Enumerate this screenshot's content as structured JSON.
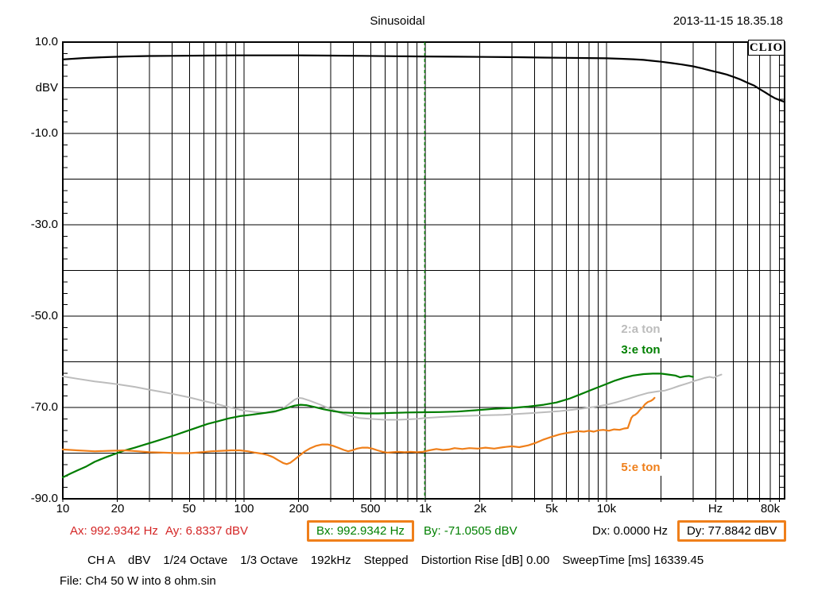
{
  "header": {
    "title": "Sinusoidal",
    "datetime": "2013-11-15 18.35.18",
    "logo": "CLIO"
  },
  "chart_data": {
    "type": "line",
    "title": "Sinusoidal",
    "x_axis": {
      "scale": "log",
      "min_hz": 10,
      "max_hz": 96000,
      "grid": "log-decades",
      "ticks": [
        {
          "hz": 10,
          "label": "10"
        },
        {
          "hz": 20,
          "label": "20"
        },
        {
          "hz": 50,
          "label": "50"
        },
        {
          "hz": 100,
          "label": "100"
        },
        {
          "hz": 200,
          "label": "200"
        },
        {
          "hz": 500,
          "label": "500"
        },
        {
          "hz": 1000,
          "label": "1k"
        },
        {
          "hz": 2000,
          "label": "2k"
        },
        {
          "hz": 5000,
          "label": "5k"
        },
        {
          "hz": 10000,
          "label": "10k"
        },
        {
          "hz": 40000,
          "label": "Hz"
        },
        {
          "hz": 80000,
          "label": "80k"
        }
      ]
    },
    "y_axis": {
      "unit": "dBV",
      "min": -90,
      "max": 10,
      "grid_step_db": 10,
      "minor_tick_db": 2.5,
      "tick_labels": [
        {
          "db": 10,
          "label": "10.0"
        },
        {
          "db": 0,
          "label": "dBV"
        },
        {
          "db": -10,
          "label": "-10.0"
        },
        {
          "db": -30,
          "label": "-30.0"
        },
        {
          "db": -50,
          "label": "-50.0"
        },
        {
          "db": -70,
          "label": "-70.0"
        },
        {
          "db": -90,
          "label": "-90.0"
        }
      ]
    },
    "marker_line": {
      "hz": 992.9342,
      "color": "#007700",
      "style": "dashed"
    },
    "legend": [
      {
        "label": "2:a ton",
        "color": "#bcbcbc"
      },
      {
        "label": "3:e ton",
        "color": "#008000"
      },
      {
        "label": "5:e ton",
        "color": "#ef7f1a"
      }
    ],
    "series": [
      {
        "id": "fundamental",
        "name": "CH A fundamental",
        "color": "#000000",
        "width": 2.2,
        "points": [
          [
            10,
            6.2
          ],
          [
            13,
            6.5
          ],
          [
            17,
            6.7
          ],
          [
            22,
            6.85
          ],
          [
            30,
            6.95
          ],
          [
            40,
            7.0
          ],
          [
            60,
            7.05
          ],
          [
            90,
            7.1
          ],
          [
            140,
            7.1
          ],
          [
            200,
            7.1
          ],
          [
            300,
            7.05
          ],
          [
            450,
            7.0
          ],
          [
            700,
            6.9
          ],
          [
            1000,
            6.85
          ],
          [
            1500,
            6.8
          ],
          [
            2200,
            6.75
          ],
          [
            3200,
            6.7
          ],
          [
            4500,
            6.6
          ],
          [
            6000,
            6.55
          ],
          [
            8000,
            6.5
          ],
          [
            10000,
            6.45
          ],
          [
            12000,
            6.35
          ],
          [
            14000,
            6.25
          ],
          [
            16000,
            6.1
          ],
          [
            18000,
            5.9
          ],
          [
            20000,
            5.7
          ],
          [
            23000,
            5.4
          ],
          [
            26000,
            5.1
          ],
          [
            30000,
            4.7
          ],
          [
            34000,
            4.2
          ],
          [
            38000,
            3.7
          ],
          [
            42000,
            3.3
          ],
          [
            46000,
            2.9
          ],
          [
            50000,
            2.4
          ],
          [
            55000,
            1.8
          ],
          [
            60000,
            1.1
          ],
          [
            65000,
            0.5
          ],
          [
            70000,
            -0.3
          ],
          [
            75000,
            -1.0
          ],
          [
            80000,
            -1.7
          ],
          [
            85000,
            -2.3
          ],
          [
            90000,
            -2.7
          ],
          [
            96000,
            -3.1
          ]
        ]
      },
      {
        "id": "harmonic-2",
        "name": "2:a ton",
        "color": "#bcbcbc",
        "width": 2,
        "points": [
          [
            10,
            -63.2
          ],
          [
            12,
            -63.7
          ],
          [
            15,
            -64.3
          ],
          [
            20,
            -64.9
          ],
          [
            25,
            -65.5
          ],
          [
            30,
            -66.1
          ],
          [
            35,
            -66.6
          ],
          [
            40,
            -67.0
          ],
          [
            50,
            -67.8
          ],
          [
            60,
            -68.6
          ],
          [
            70,
            -69.2
          ],
          [
            80,
            -69.8
          ],
          [
            90,
            -70.3
          ],
          [
            100,
            -70.7
          ],
          [
            115,
            -71.0
          ],
          [
            130,
            -71.2
          ],
          [
            145,
            -71.1
          ],
          [
            160,
            -70.5
          ],
          [
            175,
            -69.4
          ],
          [
            190,
            -68.3
          ],
          [
            200,
            -67.9
          ],
          [
            210,
            -68.0
          ],
          [
            230,
            -68.5
          ],
          [
            260,
            -69.3
          ],
          [
            300,
            -70.3
          ],
          [
            340,
            -71.2
          ],
          [
            380,
            -71.8
          ],
          [
            430,
            -72.3
          ],
          [
            500,
            -72.5
          ],
          [
            600,
            -72.7
          ],
          [
            700,
            -72.7
          ],
          [
            800,
            -72.6
          ],
          [
            900,
            -72.5
          ],
          [
            1000,
            -72.3
          ],
          [
            1200,
            -72.1
          ],
          [
            1500,
            -71.9
          ],
          [
            1800,
            -71.8
          ],
          [
            2200,
            -71.7
          ],
          [
            2700,
            -71.6
          ],
          [
            3300,
            -71.4
          ],
          [
            4000,
            -71.2
          ],
          [
            4700,
            -71.0
          ],
          [
            5500,
            -70.8
          ],
          [
            6500,
            -70.5
          ],
          [
            7500,
            -70.2
          ],
          [
            8500,
            -69.9
          ],
          [
            10000,
            -69.4
          ],
          [
            11500,
            -68.8
          ],
          [
            13000,
            -68.2
          ],
          [
            15000,
            -67.4
          ],
          [
            17000,
            -66.8
          ],
          [
            19000,
            -66.5
          ],
          [
            21000,
            -66.3
          ],
          [
            23000,
            -65.8
          ],
          [
            25000,
            -65.3
          ],
          [
            27000,
            -64.9
          ],
          [
            29000,
            -64.5
          ],
          [
            31000,
            -64.1
          ],
          [
            33000,
            -63.8
          ],
          [
            35000,
            -63.5
          ],
          [
            37000,
            -63.3
          ],
          [
            39000,
            -63.5
          ],
          [
            41000,
            -63.1
          ],
          [
            43000,
            -62.8
          ]
        ]
      },
      {
        "id": "harmonic-3",
        "name": "3:e ton",
        "color": "#007d00",
        "width": 2.2,
        "points": [
          [
            10,
            -85.3
          ],
          [
            11,
            -84.5
          ],
          [
            12,
            -83.8
          ],
          [
            13.5,
            -82.9
          ],
          [
            15,
            -81.9
          ],
          [
            17,
            -81.0
          ],
          [
            19,
            -80.3
          ],
          [
            22,
            -79.4
          ],
          [
            25,
            -78.8
          ],
          [
            28,
            -78.2
          ],
          [
            32,
            -77.5
          ],
          [
            37,
            -76.7
          ],
          [
            42,
            -76.0
          ],
          [
            48,
            -75.2
          ],
          [
            55,
            -74.4
          ],
          [
            63,
            -73.6
          ],
          [
            72,
            -73.0
          ],
          [
            82,
            -72.4
          ],
          [
            95,
            -71.9
          ],
          [
            110,
            -71.6
          ],
          [
            130,
            -71.2
          ],
          [
            150,
            -70.8
          ],
          [
            170,
            -70.2
          ],
          [
            190,
            -69.6
          ],
          [
            205,
            -69.4
          ],
          [
            220,
            -69.5
          ],
          [
            245,
            -69.9
          ],
          [
            275,
            -70.4
          ],
          [
            310,
            -70.8
          ],
          [
            350,
            -71.1
          ],
          [
            400,
            -71.2
          ],
          [
            470,
            -71.3
          ],
          [
            550,
            -71.3
          ],
          [
            650,
            -71.2
          ],
          [
            800,
            -71.1
          ],
          [
            992.9,
            -71.05
          ],
          [
            1200,
            -71.0
          ],
          [
            1500,
            -70.9
          ],
          [
            1900,
            -70.6
          ],
          [
            2400,
            -70.3
          ],
          [
            3000,
            -70.1
          ],
          [
            3700,
            -69.8
          ],
          [
            4500,
            -69.4
          ],
          [
            5300,
            -68.9
          ],
          [
            6200,
            -68.1
          ],
          [
            7200,
            -67.1
          ],
          [
            8300,
            -66.1
          ],
          [
            9500,
            -65.2
          ],
          [
            11000,
            -64.2
          ],
          [
            12500,
            -63.5
          ],
          [
            14000,
            -63.0
          ],
          [
            16000,
            -62.7
          ],
          [
            18000,
            -62.6
          ],
          [
            20000,
            -62.6
          ],
          [
            22000,
            -62.8
          ],
          [
            24000,
            -63.0
          ],
          [
            25500,
            -63.4
          ],
          [
            27000,
            -63.2
          ],
          [
            28500,
            -63.1
          ],
          [
            30000,
            -63.3
          ]
        ]
      },
      {
        "id": "harmonic-5",
        "name": "5:e ton",
        "color": "#ef7f1a",
        "width": 2.2,
        "points": [
          [
            10,
            -79.2
          ],
          [
            12,
            -79.4
          ],
          [
            15,
            -79.6
          ],
          [
            18,
            -79.5
          ],
          [
            22,
            -79.4
          ],
          [
            26,
            -79.6
          ],
          [
            30,
            -79.8
          ],
          [
            36,
            -79.9
          ],
          [
            43,
            -80.0
          ],
          [
            50,
            -80.0
          ],
          [
            58,
            -79.8
          ],
          [
            66,
            -79.6
          ],
          [
            75,
            -79.5
          ],
          [
            85,
            -79.4
          ],
          [
            95,
            -79.4
          ],
          [
            105,
            -79.6
          ],
          [
            115,
            -79.9
          ],
          [
            125,
            -80.1
          ],
          [
            135,
            -80.4
          ],
          [
            145,
            -80.9
          ],
          [
            155,
            -81.6
          ],
          [
            165,
            -82.2
          ],
          [
            172,
            -82.4
          ],
          [
            180,
            -82.1
          ],
          [
            190,
            -81.4
          ],
          [
            200,
            -80.7
          ],
          [
            215,
            -79.7
          ],
          [
            230,
            -79.0
          ],
          [
            250,
            -78.4
          ],
          [
            270,
            -78.1
          ],
          [
            290,
            -78.1
          ],
          [
            310,
            -78.4
          ],
          [
            330,
            -78.8
          ],
          [
            355,
            -79.3
          ],
          [
            375,
            -79.6
          ],
          [
            395,
            -79.4
          ],
          [
            420,
            -79.0
          ],
          [
            450,
            -78.8
          ],
          [
            480,
            -78.8
          ],
          [
            510,
            -79.0
          ],
          [
            545,
            -79.4
          ],
          [
            580,
            -79.7
          ],
          [
            620,
            -79.9
          ],
          [
            660,
            -79.8
          ],
          [
            710,
            -79.7
          ],
          [
            770,
            -79.8
          ],
          [
            830,
            -79.7
          ],
          [
            900,
            -79.8
          ],
          [
            970,
            -79.7
          ],
          [
            1050,
            -79.4
          ],
          [
            1150,
            -79.1
          ],
          [
            1250,
            -79.3
          ],
          [
            1350,
            -79.2
          ],
          [
            1450,
            -78.9
          ],
          [
            1600,
            -79.1
          ],
          [
            1750,
            -78.9
          ],
          [
            1950,
            -79.0
          ],
          [
            2150,
            -78.8
          ],
          [
            2400,
            -79.0
          ],
          [
            2700,
            -78.7
          ],
          [
            3000,
            -78.5
          ],
          [
            3300,
            -78.7
          ],
          [
            3700,
            -78.3
          ],
          [
            4100,
            -77.7
          ],
          [
            4500,
            -77.0
          ],
          [
            5000,
            -76.4
          ],
          [
            5500,
            -75.9
          ],
          [
            6000,
            -75.6
          ],
          [
            6500,
            -75.4
          ],
          [
            7000,
            -75.2
          ],
          [
            7500,
            -75.3
          ],
          [
            8000,
            -75.1
          ],
          [
            8500,
            -75.3
          ],
          [
            9000,
            -75.0
          ],
          [
            9600,
            -74.9
          ],
          [
            10300,
            -75.1
          ],
          [
            11000,
            -74.8
          ],
          [
            11800,
            -74.9
          ],
          [
            12500,
            -74.6
          ],
          [
            13100,
            -74.5
          ],
          [
            13400,
            -73.4
          ],
          [
            13700,
            -72.3
          ],
          [
            14000,
            -71.8
          ],
          [
            14400,
            -71.6
          ],
          [
            14800,
            -71.2
          ],
          [
            15300,
            -70.5
          ],
          [
            15800,
            -70.0
          ],
          [
            16300,
            -69.3
          ],
          [
            16900,
            -68.8
          ],
          [
            17500,
            -68.6
          ],
          [
            18000,
            -68.3
          ],
          [
            18400,
            -67.9
          ]
        ]
      }
    ]
  },
  "markers": {
    "box_color": "#ef7f1a",
    "ax": {
      "label": "Ax: 992.9342 Hz",
      "color": "#d42626"
    },
    "ay": {
      "label": "Ay: 6.8337 dBV",
      "color": "#d42626"
    },
    "bx": {
      "label": "Bx: 992.9342 Hz",
      "color": "#008000",
      "boxed": true
    },
    "by": {
      "label": "By: -71.0505 dBV",
      "color": "#008000"
    },
    "dx": {
      "label": "Dx: 0.0000 Hz",
      "color": "#000000"
    },
    "dy": {
      "label": "Dy: 77.8842 dBV",
      "color": "#000000",
      "boxed": true
    }
  },
  "settings_line": {
    "segments": [
      "CH A",
      "dBV",
      "1/24 Octave",
      "1/3 Octave",
      "192kHz",
      "Stepped",
      "Distortion Rise [dB] 0.00",
      "SweepTime [ms] 16339.45"
    ]
  },
  "file_line": "File: Ch4 50 W into 8 ohm.sin"
}
